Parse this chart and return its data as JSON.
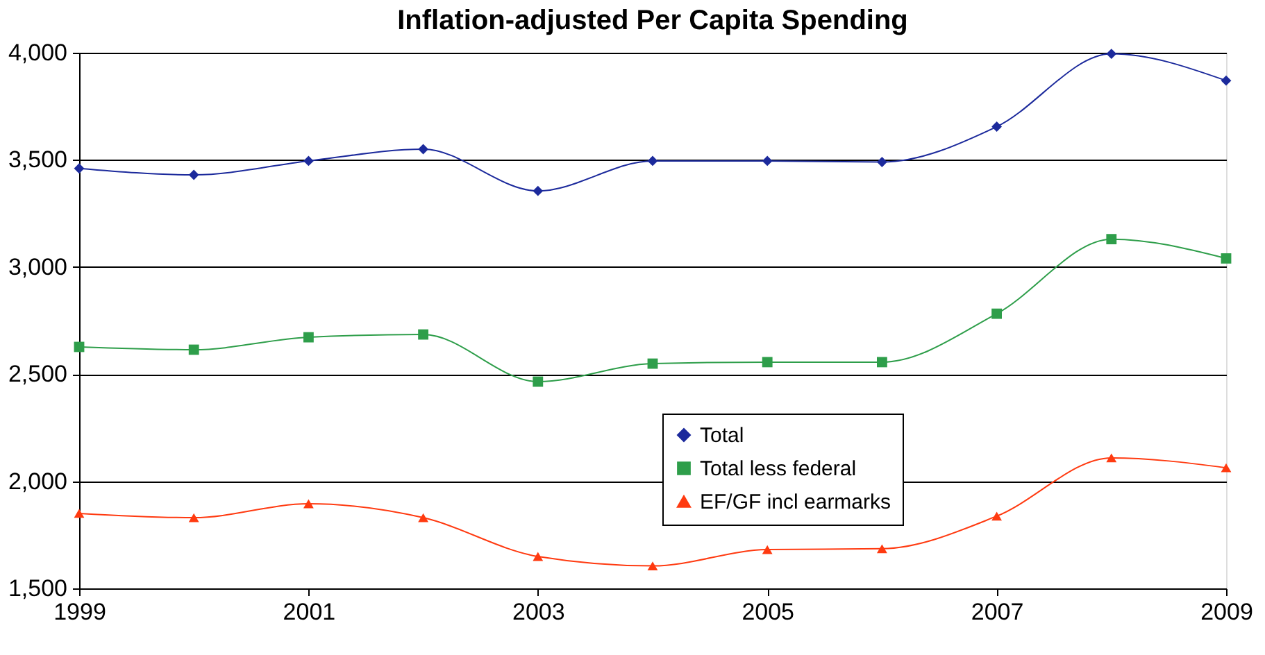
{
  "chart_data": {
    "type": "line",
    "title": "Inflation-adjusted Per Capita Spending",
    "x": [
      1999,
      2000,
      2001,
      2002,
      2003,
      2004,
      2005,
      2006,
      2007,
      2008,
      2009
    ],
    "xlim": [
      1999,
      2009
    ],
    "xticks": [
      1999,
      2001,
      2003,
      2005,
      2007,
      2009
    ],
    "ylim": [
      1500,
      4000
    ],
    "yticks": [
      {
        "value": 1500,
        "label": "1,500"
      },
      {
        "value": 2000,
        "label": "2,000"
      },
      {
        "value": 2500,
        "label": "2,500"
      },
      {
        "value": 3000,
        "label": "3,000"
      },
      {
        "value": 3500,
        "label": "3,500"
      },
      {
        "value": 4000,
        "label": "4,000"
      }
    ],
    "grid": "y",
    "legend": "bottom",
    "series": [
      {
        "name": "Total",
        "color": "#1c2a9c",
        "marker": "diamond",
        "values": [
          3460,
          3430,
          3495,
          3550,
          3355,
          3495,
          3495,
          3490,
          3655,
          3995,
          3870
        ]
      },
      {
        "name": "Total less federal",
        "color": "#2e9e4a",
        "marker": "square",
        "values": [
          2627,
          2614,
          2672,
          2685,
          2465,
          2549,
          2556,
          2556,
          2782,
          3130,
          3040
        ]
      },
      {
        "name": "EF/GF incl earmarks",
        "color": "#ff3a10",
        "marker": "triangle",
        "values": [
          1850,
          1830,
          1895,
          1830,
          1649,
          1605,
          1681,
          1685,
          1837,
          2109,
          2063
        ]
      }
    ]
  }
}
